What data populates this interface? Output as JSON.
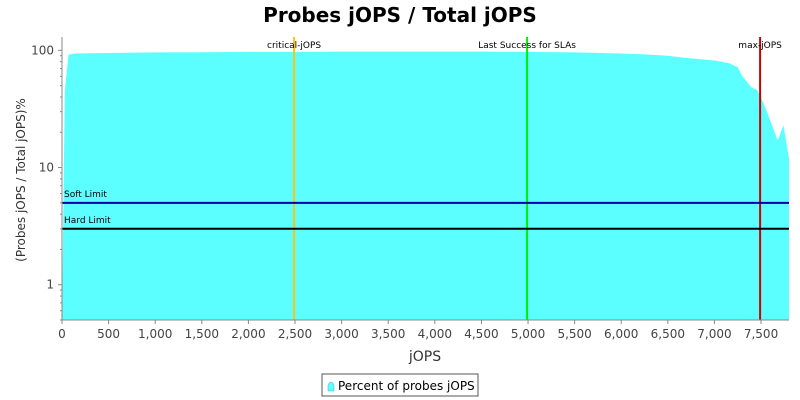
{
  "chart_data": {
    "type": "area",
    "title": "Probes jOPS / Total jOPS",
    "xlabel": "jOPS",
    "ylabel": "(Probes jOPS / Total jOPS)%",
    "xlim": [
      0,
      7800
    ],
    "ylim": [
      0.5,
      130
    ],
    "y_scale": "log",
    "grid": false,
    "x_ticks": [
      0,
      500,
      1000,
      1500,
      2000,
      2500,
      3000,
      3500,
      4000,
      4500,
      5000,
      5500,
      6000,
      6500,
      7000,
      7500
    ],
    "x_tick_labels": [
      "0",
      "500",
      "1,000",
      "1,500",
      "2,000",
      "2,500",
      "3,000",
      "3,500",
      "4,000",
      "4,500",
      "5,000",
      "5,500",
      "6,000",
      "6,500",
      "7,000",
      "7,500"
    ],
    "y_ticks": [
      1,
      10,
      100
    ],
    "y_tick_labels": [
      "1",
      "10",
      "100"
    ],
    "series": [
      {
        "name": "Percent of probes jOPS",
        "color": "#5cffff",
        "x": [
          0,
          30,
          70,
          150,
          500,
          1000,
          1500,
          2000,
          2500,
          3000,
          3500,
          4000,
          4500,
          5000,
          5500,
          6000,
          6300,
          6500,
          6700,
          7000,
          7150,
          7250,
          7300,
          7400,
          7460,
          7530,
          7600,
          7680,
          7740,
          7800
        ],
        "y": [
          0.5,
          45,
          92,
          94,
          95,
          96,
          96.5,
          97,
          97,
          97.5,
          97.5,
          97.5,
          97.5,
          97,
          96,
          94,
          92,
          90,
          86,
          82,
          78,
          72,
          60,
          48,
          46,
          35,
          25,
          17,
          23,
          12
        ]
      }
    ],
    "reference_lines": [
      {
        "orientation": "vertical",
        "x": 2490,
        "label": "critical-jOPS",
        "color": "#ffc20e"
      },
      {
        "orientation": "vertical",
        "x": 4990,
        "label": "Last Success for SLAs",
        "color": "#00ee00"
      },
      {
        "orientation": "vertical",
        "x": 7490,
        "label": "max-jOPS",
        "color": "#cc0000"
      },
      {
        "orientation": "horizontal",
        "y": 5,
        "label": "Soft Limit",
        "color": "#0000aa"
      },
      {
        "orientation": "horizontal",
        "y": 3,
        "label": "Hard Limit",
        "color": "#000000"
      }
    ],
    "legend": {
      "position": "bottom-center",
      "label": "Percent of probes jOPS"
    }
  }
}
